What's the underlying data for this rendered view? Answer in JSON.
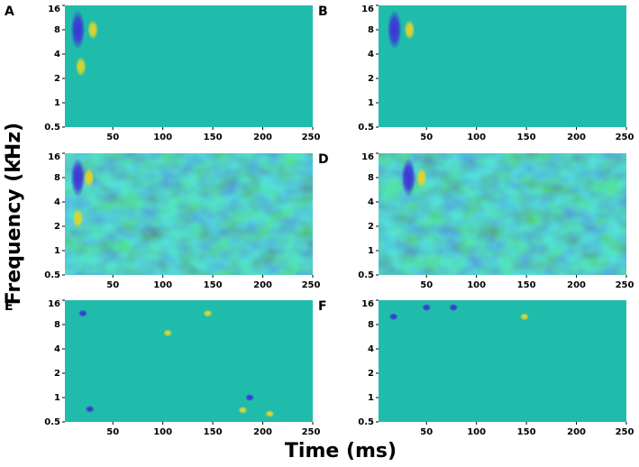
{
  "figure": {
    "xlabel": "Time (ms)",
    "ylabel": "Frequency (kHz)"
  },
  "chart_data": [
    {
      "type": "heatmap",
      "label": "A",
      "xlim": [
        2,
        250
      ],
      "ylim": [
        0.5,
        16
      ],
      "log_y": true,
      "xticks": [
        50,
        100,
        150,
        200,
        250
      ],
      "yticks": [
        0.5,
        1,
        2,
        4,
        8,
        16
      ],
      "background": "#1fbcab",
      "noise": false,
      "x": [
        15,
        30,
        18
      ],
      "y": [
        8,
        8,
        2.8
      ],
      "colors": [
        "#3b33d6",
        "#e2d52c",
        "#e2d52c"
      ]
    },
    {
      "type": "heatmap",
      "label": "B",
      "xlim": [
        2,
        250
      ],
      "ylim": [
        0.5,
        16
      ],
      "log_y": true,
      "xticks": [
        50,
        100,
        150,
        200,
        250
      ],
      "yticks": [
        0.5,
        1,
        2,
        4,
        8,
        16
      ],
      "background": "#1fbcab",
      "noise": false,
      "x": [
        18,
        33
      ],
      "y": [
        8,
        8
      ],
      "colors": [
        "#3b33d6",
        "#e2d52c"
      ]
    },
    {
      "type": "heatmap",
      "label": "C",
      "xlim": [
        2,
        250
      ],
      "ylim": [
        0.5,
        16
      ],
      "log_y": true,
      "xticks": [
        50,
        100,
        150,
        200,
        250
      ],
      "yticks": [
        0.5,
        1,
        2,
        4,
        8,
        16
      ],
      "background": "#1fbcab",
      "noise": true,
      "x": [
        15,
        26,
        15
      ],
      "y": [
        8,
        8,
        2.5
      ],
      "colors": [
        "#3b33d6",
        "#e2d52c",
        "#e2d52c"
      ]
    },
    {
      "type": "heatmap",
      "label": "D",
      "xlim": [
        2,
        250
      ],
      "ylim": [
        0.5,
        16
      ],
      "log_y": true,
      "xticks": [
        50,
        100,
        150,
        200,
        250
      ],
      "yticks": [
        0.5,
        1,
        2,
        4,
        8,
        16
      ],
      "background": "#1fbcab",
      "noise": true,
      "x": [
        32,
        45
      ],
      "y": [
        8,
        8
      ],
      "colors": [
        "#3b33d6",
        "#e2d52c"
      ]
    },
    {
      "type": "heatmap",
      "label": "E",
      "xlim": [
        2,
        250
      ],
      "ylim": [
        0.5,
        16
      ],
      "log_y": true,
      "xticks": [
        50,
        100,
        150,
        200,
        250
      ],
      "yticks": [
        0.5,
        1,
        2,
        4,
        8,
        16
      ],
      "background": "#1fbcab",
      "noise": false,
      "x": [
        20,
        145,
        105,
        187,
        27,
        180,
        207
      ],
      "y": [
        11,
        11,
        6.3,
        1.0,
        0.72,
        0.7,
        0.63
      ],
      "colors": [
        "#3b33d6",
        "#e2d52c",
        "#e2d52c",
        "#3b33d6",
        "#3b33d6",
        "#e2d52c",
        "#e2d52c"
      ]
    },
    {
      "type": "heatmap",
      "label": "F",
      "xlim": [
        2,
        250
      ],
      "ylim": [
        0.5,
        16
      ],
      "log_y": true,
      "xticks": [
        50,
        100,
        150,
        200,
        250
      ],
      "yticks": [
        0.5,
        1,
        2,
        4,
        8,
        16
      ],
      "background": "#1fbcab",
      "noise": false,
      "x": [
        17,
        50,
        77,
        148
      ],
      "y": [
        10,
        13,
        13,
        10
      ],
      "colors": [
        "#3b33d6",
        "#3b33d6",
        "#3b33d6",
        "#e2d52c"
      ]
    }
  ]
}
